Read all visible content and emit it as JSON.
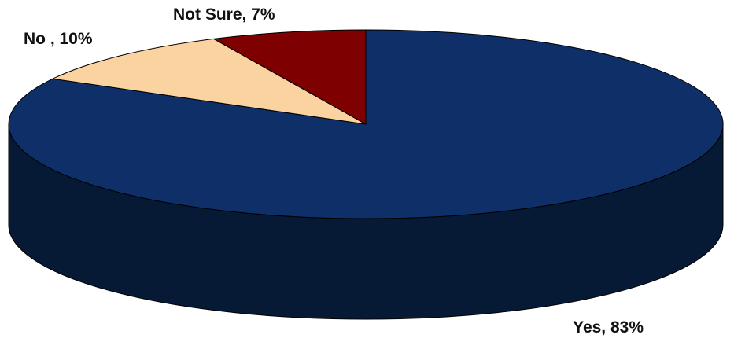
{
  "chart_data": {
    "type": "pie",
    "style": "3d",
    "title": "",
    "start_angle_deg": 90,
    "direction": "clockwise",
    "slices": [
      {
        "label": "Yes",
        "value": 83,
        "display": "Yes, 83%",
        "color": "#0f2f68",
        "side_color": "#061a36"
      },
      {
        "label": "No",
        "value": 10,
        "display": "No , 10%",
        "color": "#fbd3a0",
        "side_color": "#c8a070"
      },
      {
        "label": "Not Sure",
        "value": 7,
        "display": "Not Sure, 7%",
        "color": "#7e0000",
        "side_color": "#4a0000"
      }
    ]
  }
}
